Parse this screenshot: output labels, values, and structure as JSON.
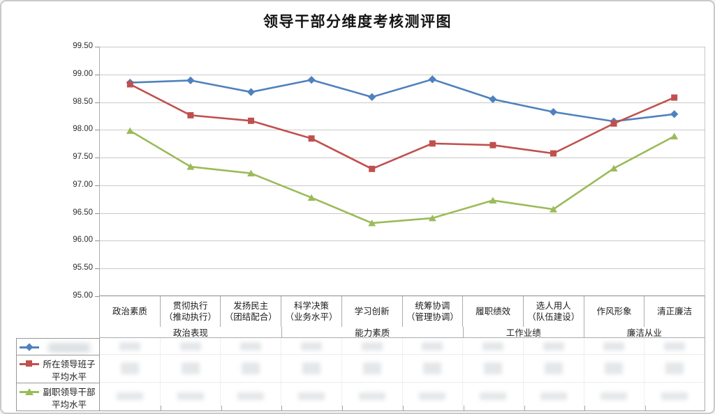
{
  "title": "领导干部分维度考核测评图",
  "legend": [
    {
      "label": "",
      "redacted": true,
      "marker": "diamond",
      "color": "#4F81BD"
    },
    {
      "label": "所在领导班子\n平均水平",
      "redacted": false,
      "marker": "square",
      "color": "#C0504D"
    },
    {
      "label": "副职领导干部\n平均水平",
      "redacted": false,
      "marker": "triangle",
      "color": "#9BBB59"
    }
  ],
  "value_table": {
    "redacted": true,
    "rows": 3,
    "columns": 10
  },
  "colors": {
    "series_blue": "#4F81BD",
    "series_red": "#C0504D",
    "series_green": "#9BBB59",
    "gridline": "#C9C9C9",
    "table_border": "#ABABAB"
  },
  "chart_data": {
    "type": "line",
    "title": "领导干部分维度考核测评图",
    "categories": [
      "政治素质",
      "贯彻执行（推动执行）",
      "发扬民主（团结配合）",
      "科学决策（业务水平）",
      "学习创新",
      "统筹协调（管理协调）",
      "履职绩效",
      "选人用人（队伍建设）",
      "作风形象",
      "清正廉洁"
    ],
    "categories_display": [
      "政治素质",
      "贯彻执行\n（推动执行）",
      "发扬民主\n（团结配合）",
      "科学决策\n（业务水平）",
      "学习创新",
      "统筹协调\n（管理协调）",
      "履职绩效",
      "选人用人\n（队伍建设）",
      "作风形象",
      "清正廉洁"
    ],
    "category_groups": [
      {
        "label": "政治表现",
        "span": 3
      },
      {
        "label": "能力素质",
        "span": 3
      },
      {
        "label": "工作业绩",
        "span": 2
      },
      {
        "label": "廉洁从业",
        "span": 2
      }
    ],
    "series": [
      {
        "name": "",
        "label_blurred": true,
        "color": "#4F81BD",
        "marker": "diamond",
        "values": [
          98.85,
          98.89,
          98.68,
          98.9,
          98.59,
          98.91,
          98.55,
          98.32,
          98.15,
          98.28
        ]
      },
      {
        "name": "所在领导班子平均水平",
        "color": "#C0504D",
        "marker": "square",
        "values": [
          98.82,
          98.26,
          98.16,
          97.84,
          97.29,
          97.75,
          97.72,
          97.57,
          98.11,
          98.58
        ]
      },
      {
        "name": "副职领导干部平均水平",
        "color": "#9BBB59",
        "marker": "triangle",
        "values": [
          97.98,
          97.33,
          97.21,
          96.77,
          96.31,
          96.4,
          96.72,
          96.56,
          97.3,
          97.88
        ]
      }
    ],
    "ylim": [
      95.0,
      99.5
    ],
    "y_step": 0.5,
    "y_tick_labels": [
      "99.50",
      "99.00",
      "98.50",
      "98.00",
      "97.50",
      "97.00",
      "96.50",
      "96.00",
      "95.50",
      "95.00"
    ],
    "grid": true,
    "legend_position": "bottom-left",
    "values_table_blurred": true
  }
}
